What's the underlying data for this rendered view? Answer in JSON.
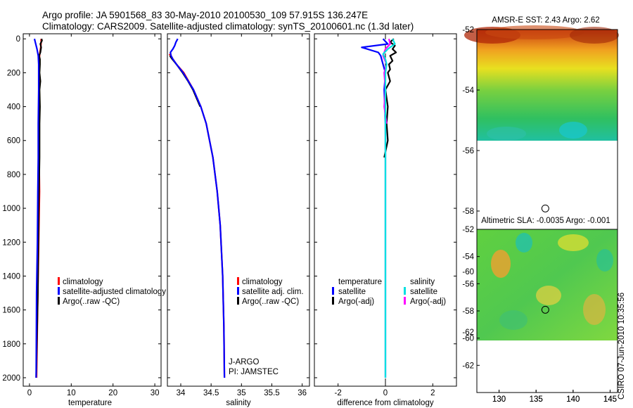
{
  "header": {
    "line1": "Argo profile: JA 5901568_83 30-May-2010 20100530_109 57.915S 136.247E",
    "line2": "Climatology: CARS2009. Satellite-adjusted climatology: synTS_20100601.nc (1.3d later)"
  },
  "footer": {
    "stamp": "CSIRO 07-Jun-2010 10:35:56"
  },
  "colors": {
    "climatology": "#ff0000",
    "satellite": "#0000ff",
    "argo": "#000000",
    "satellite_sal": "#00e0e0",
    "argo_sal": "#ff00ff"
  },
  "chart_data": [
    {
      "type": "line",
      "name": "temperature",
      "xlabel": "temperature",
      "xlim": [
        -1.5,
        31.5
      ],
      "ylim": [
        2050,
        -30
      ],
      "xticks": [
        0,
        10,
        20,
        30
      ],
      "yticks": [
        0,
        200,
        400,
        600,
        800,
        1000,
        1200,
        1400,
        1600,
        1800,
        2000
      ],
      "legend": [
        "climatology",
        "satellite-adjusted climatology",
        "Argo(..raw -QC)"
      ],
      "series": [
        {
          "name": "climatology",
          "color": "#ff0000",
          "depth": [
            0,
            20,
            50,
            80,
            100,
            150,
            200,
            300,
            500,
            700,
            900,
            1200,
            1500,
            2000
          ],
          "values": [
            2.8,
            2.8,
            2.7,
            2.5,
            2.4,
            2.3,
            2.3,
            2.3,
            2.3,
            2.3,
            2.4,
            2.2,
            2.0,
            1.7
          ]
        },
        {
          "name": "Argo(..raw -QC)",
          "color": "#000000",
          "depth": [
            0,
            10,
            30,
            50,
            80,
            100,
            120,
            150,
            200,
            250,
            300,
            400,
            500,
            700,
            1000,
            1500,
            2000
          ],
          "values": [
            2.9,
            3.0,
            2.6,
            2.8,
            2.6,
            2.3,
            2.5,
            2.5,
            2.4,
            2.6,
            2.4,
            2.5,
            2.4,
            2.4,
            2.2,
            2.0,
            1.6
          ]
        },
        {
          "name": "satellite-adjusted climatology",
          "color": "#0000ff",
          "depth": [
            0,
            30,
            60,
            100,
            150,
            200,
            300,
            500,
            700,
            900,
            1200,
            1500,
            2000
          ],
          "values": [
            1.2,
            1.5,
            1.8,
            2.1,
            2.2,
            2.2,
            2.2,
            2.1,
            2.1,
            2.0,
            1.9,
            1.7,
            1.6
          ]
        }
      ]
    },
    {
      "type": "line",
      "name": "salinity",
      "xlabel": "salinity",
      "xlim": [
        33.78,
        36.12
      ],
      "ylim": [
        2050,
        -30
      ],
      "xticks": [
        34,
        34.5,
        35,
        35.5,
        36
      ],
      "legend": [
        "climatology",
        "satellite adj. clim.",
        "Argo(..raw -QC)"
      ],
      "annotations": [
        "J-ARGO",
        "PI: JAMSTEC"
      ],
      "series": [
        {
          "name": "climatology",
          "color": "#ff0000",
          "depth": [
            90,
            100,
            120,
            150,
            200,
            300,
            400,
            500,
            700,
            900,
            1100,
            1400,
            1700,
            2000
          ],
          "values": [
            33.81,
            33.84,
            33.87,
            33.93,
            34.05,
            34.21,
            34.33,
            34.42,
            34.53,
            34.6,
            34.65,
            34.69,
            34.71,
            34.72
          ]
        },
        {
          "name": "Argo(..raw -QC)",
          "color": "#000000",
          "depth": [
            100,
            120,
            150,
            200,
            250,
            300,
            400
          ],
          "values": [
            33.82,
            33.86,
            33.93,
            34.03,
            34.12,
            34.2,
            34.32
          ]
        },
        {
          "name": "satellite adj. clim.",
          "color": "#0000ff",
          "depth": [
            0,
            20,
            40,
            60,
            80,
            100,
            120,
            150,
            200,
            300,
            400,
            500,
            700,
            900,
            1100,
            1400,
            1700,
            2000
          ],
          "values": [
            33.95,
            33.92,
            33.9,
            33.87,
            33.83,
            33.84,
            33.87,
            33.93,
            34.04,
            34.21,
            34.33,
            34.42,
            34.53,
            34.6,
            34.65,
            34.69,
            34.71,
            34.72
          ]
        }
      ]
    },
    {
      "type": "line",
      "name": "difference",
      "xlabel": "difference from climatology",
      "xlim": [
        -3.0,
        3.0
      ],
      "ylim": [
        2050,
        -30
      ],
      "xticks": [
        -2,
        0,
        2
      ],
      "legend_headers": [
        "temperature",
        "salinity"
      ],
      "legend": [
        "satellite",
        "Argo(-adj)",
        "satellite",
        "Argo(-adj)"
      ],
      "series": [
        {
          "name": "temperature satellite",
          "color": "#0000ff",
          "depth": [
            0,
            30,
            50,
            80,
            100,
            150,
            200,
            300,
            500,
            700,
            1000,
            1500,
            2000
          ],
          "values": [
            -0.1,
            0.1,
            -1.0,
            -0.3,
            -0.2,
            -0.1,
            0.0,
            -0.05,
            0.0,
            0.0,
            0.0,
            0.0,
            0.0
          ]
        },
        {
          "name": "temperature Argo(-adj)",
          "color": "#000000",
          "depth": [
            0,
            20,
            40,
            60,
            80,
            100,
            130,
            150,
            180,
            200,
            250,
            300,
            400,
            500,
            600,
            700
          ],
          "values": [
            0.35,
            0.2,
            0.4,
            0.3,
            0.45,
            0.2,
            0.3,
            0.15,
            0.2,
            0.1,
            0.2,
            0.0,
            0.1,
            0.05,
            0.1,
            -0.05
          ]
        },
        {
          "name": "salinity Argo(-adj)",
          "color": "#ff00ff",
          "depth": [
            0,
            30,
            60,
            100,
            150,
            200,
            300,
            400,
            500
          ],
          "values": [
            0.15,
            0.2,
            0.0,
            -0.1,
            0.05,
            -0.05,
            0.0,
            -0.05,
            0.05
          ]
        },
        {
          "name": "salinity satellite",
          "color": "#00e0e0",
          "depth": [
            0,
            30,
            60,
            90,
            120,
            150,
            200,
            300,
            400,
            500,
            700,
            1000,
            1500,
            2000
          ],
          "values": [
            0.3,
            0.4,
            0.1,
            -0.1,
            0.0,
            0.05,
            0.0,
            0.0,
            0.0,
            0.0,
            0.0,
            0.0,
            0.0,
            0.0
          ]
        }
      ]
    },
    {
      "type": "heatmap",
      "name": "amsr-e-sst",
      "title": "AMSR-E SST: 2.43  Argo: 2.62",
      "xlim": [
        127,
        146
      ],
      "ylim": [
        -64,
        -52
      ],
      "xticks": [
        130,
        135,
        140,
        145
      ],
      "yticks": [
        -52,
        -54,
        -56,
        -58,
        -60,
        -62
      ],
      "data_ylim": [
        -60,
        -52
      ],
      "marker": [
        136.247,
        -57.915
      ]
    },
    {
      "type": "heatmap",
      "name": "altimetric-sla",
      "title": "Altimetric SLA: -0.0035  Argo: -0.001",
      "xlim": [
        127,
        146
      ],
      "ylim": [
        -64,
        -52
      ],
      "xticks": [
        130,
        135,
        140,
        145
      ],
      "yticks": [
        -52,
        -54,
        -56,
        -58,
        -60,
        -62
      ],
      "data_ylim": [
        -60,
        -52
      ],
      "marker": [
        136.247,
        -57.915
      ]
    }
  ]
}
